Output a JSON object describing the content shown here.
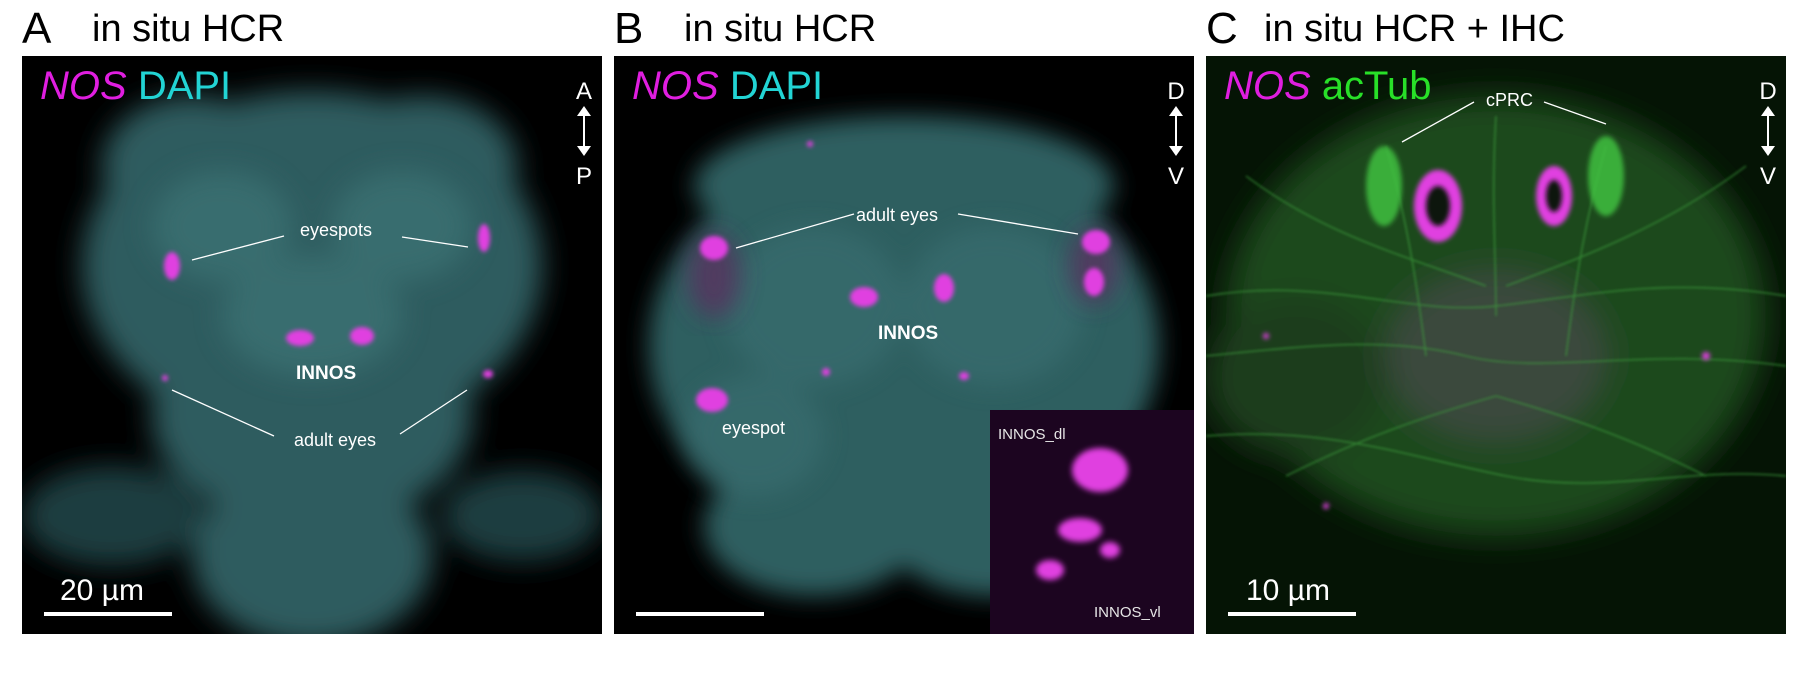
{
  "panels": [
    {
      "letter": "A",
      "title": "in situ HCR",
      "stain": {
        "gene": "NOS",
        "counter": "DAPI"
      },
      "axis": {
        "top": "A",
        "bottom": "P"
      },
      "labels": {
        "eyespots": "eyespots",
        "innos": "INNOS",
        "adult_eyes": "adult eyes"
      },
      "scale_text": "20 µm"
    },
    {
      "letter": "B",
      "title": "in situ HCR",
      "stain": {
        "gene": "NOS",
        "counter": "DAPI"
      },
      "axis": {
        "top": "D",
        "bottom": "V"
      },
      "labels": {
        "adult_eyes": "adult eyes",
        "innos": "INNOS",
        "eyespot": "eyespot"
      },
      "inset": {
        "top_label": "INNOS_dl",
        "bottom_label": "INNOS_vl"
      }
    },
    {
      "letter": "C",
      "title": "in situ HCR + IHC",
      "stain": {
        "gene": "NOS",
        "counter": "acTub"
      },
      "axis": {
        "top": "D",
        "bottom": "V"
      },
      "labels": {
        "cprc": "cPRC"
      },
      "scale_text": "10 µm"
    }
  ],
  "colors": {
    "gene": "#e01ee0",
    "dapi": "#22d4d4",
    "actub": "#28e028",
    "panel_bg": "#000000"
  }
}
